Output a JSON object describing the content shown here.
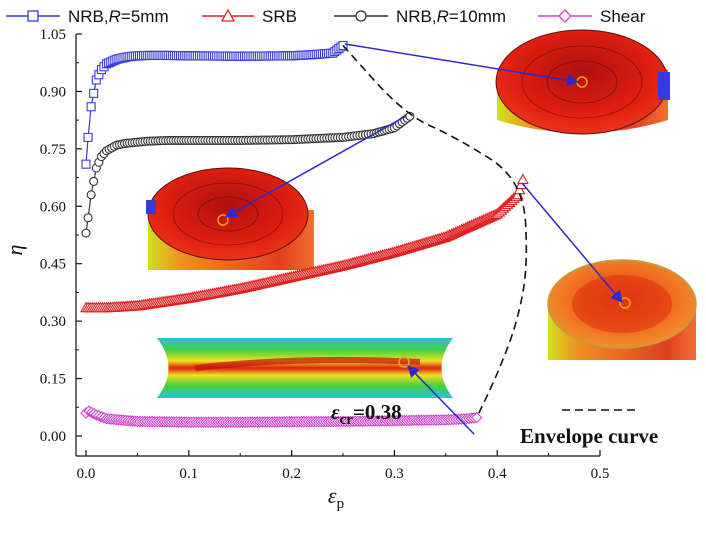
{
  "chart_data": {
    "type": "scatter",
    "xlabel_main": "ε",
    "xlabel_sub": "p",
    "ylabel": "η",
    "xlim": [
      0.0,
      0.5
    ],
    "ylim": [
      0.0,
      1.05
    ],
    "x_ticks": [
      0.0,
      0.1,
      0.2,
      0.3,
      0.4,
      0.5
    ],
    "x_tick_labels": [
      "0.0",
      "0.1",
      "0.2",
      "0.3",
      "0.4",
      "0.5"
    ],
    "y_ticks": [
      0.0,
      0.15,
      0.3,
      0.45,
      0.6,
      0.75,
      0.9,
      1.05
    ],
    "y_tick_labels": [
      "0.00",
      "0.15",
      "0.30",
      "0.45",
      "0.60",
      "0.75",
      "0.90",
      "1.05"
    ],
    "legend_position": "top",
    "series": [
      {
        "name": "NRB,R=5mm",
        "name_parts": [
          "NRB,",
          "R",
          "=5mm"
        ],
        "color": "#3a3adc",
        "marker": "square",
        "x": [
          0.0,
          0.002,
          0.005,
          0.01,
          0.015,
          0.02,
          0.03,
          0.04,
          0.05,
          0.06,
          0.08,
          0.1,
          0.15,
          0.2,
          0.22,
          0.24,
          0.25
        ],
        "y": [
          0.71,
          0.78,
          0.86,
          0.93,
          0.957,
          0.972,
          0.984,
          0.99,
          0.993,
          0.994,
          0.994,
          0.993,
          0.992,
          0.993,
          0.996,
          1.0,
          1.02
        ]
      },
      {
        "name": "SRB",
        "color": "#e02020",
        "marker": "triangle",
        "x": [
          0.0,
          0.02,
          0.05,
          0.1,
          0.15,
          0.2,
          0.25,
          0.3,
          0.35,
          0.4,
          0.42,
          0.425
        ],
        "y": [
          0.335,
          0.335,
          0.34,
          0.36,
          0.385,
          0.415,
          0.445,
          0.48,
          0.52,
          0.58,
          0.63,
          0.67
        ]
      },
      {
        "name": "NRB,R=10mm",
        "name_parts": [
          "NRB,",
          "R",
          "=10mm"
        ],
        "color": "#333333",
        "marker": "circle",
        "x": [
          0.0,
          0.002,
          0.005,
          0.01,
          0.015,
          0.02,
          0.03,
          0.04,
          0.06,
          0.08,
          0.1,
          0.15,
          0.2,
          0.25,
          0.28,
          0.3,
          0.315
        ],
        "y": [
          0.53,
          0.57,
          0.63,
          0.7,
          0.73,
          0.745,
          0.76,
          0.765,
          0.77,
          0.772,
          0.772,
          0.772,
          0.774,
          0.78,
          0.79,
          0.805,
          0.835
        ]
      },
      {
        "name": "Shear",
        "color": "#d040d0",
        "marker": "diamond",
        "x": [
          0.0,
          0.003,
          0.01,
          0.02,
          0.05,
          0.1,
          0.15,
          0.2,
          0.25,
          0.3,
          0.35,
          0.37,
          0.38
        ],
        "y": [
          0.06,
          0.065,
          0.055,
          0.045,
          0.038,
          0.036,
          0.036,
          0.037,
          0.038,
          0.04,
          0.042,
          0.045,
          0.048
        ]
      }
    ],
    "envelope_curve": {
      "label": "Envelope curve",
      "x": [
        0.25,
        0.31,
        0.36,
        0.425,
        0.43,
        0.42,
        0.4,
        0.38
      ],
      "y": [
        1.02,
        0.84,
        0.78,
        0.67,
        0.45,
        0.3,
        0.16,
        0.048
      ]
    },
    "annotation": {
      "text_main": "ε",
      "text_sub": "cr",
      "text_tail": "=0.38"
    }
  },
  "colors": {
    "arrow": "#2a2ad0",
    "envelope": "#111111"
  }
}
